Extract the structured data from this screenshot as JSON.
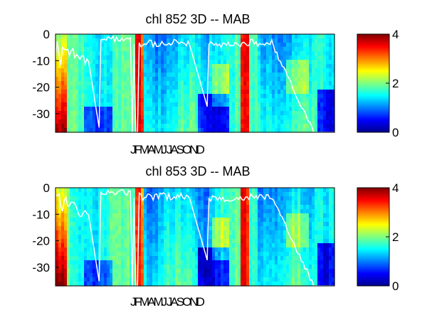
{
  "chart_data": [
    {
      "type": "heatmap",
      "title": "chl  852 3D   -- MAB",
      "xlabel": "",
      "ylabel": "",
      "month_labels": "JFMAMJ JASOND",
      "y_ticks": [
        0,
        -10,
        -20,
        -30
      ],
      "ylim": [
        -37,
        0
      ],
      "colorbar": {
        "min": 0,
        "max": 4,
        "ticks": [
          0,
          2,
          4
        ]
      },
      "colormap": "jet",
      "white_line": "mixed layer depth trace"
    },
    {
      "type": "heatmap",
      "title": "chl  853 3D   -- MAB",
      "xlabel": "",
      "ylabel": "",
      "month_labels": "JFMAMJ JASOND",
      "y_ticks": [
        0,
        -10,
        -20,
        -30
      ],
      "ylim": [
        -37,
        0
      ],
      "colorbar": {
        "min": 0,
        "max": 4,
        "ticks": [
          0,
          2,
          4
        ]
      },
      "colormap": "jet",
      "white_line": "mixed layer depth trace"
    }
  ],
  "colors": {
    "low": "#00008f",
    "mid": "#00ffff",
    "high": "#800000",
    "line": "#ffffff"
  }
}
